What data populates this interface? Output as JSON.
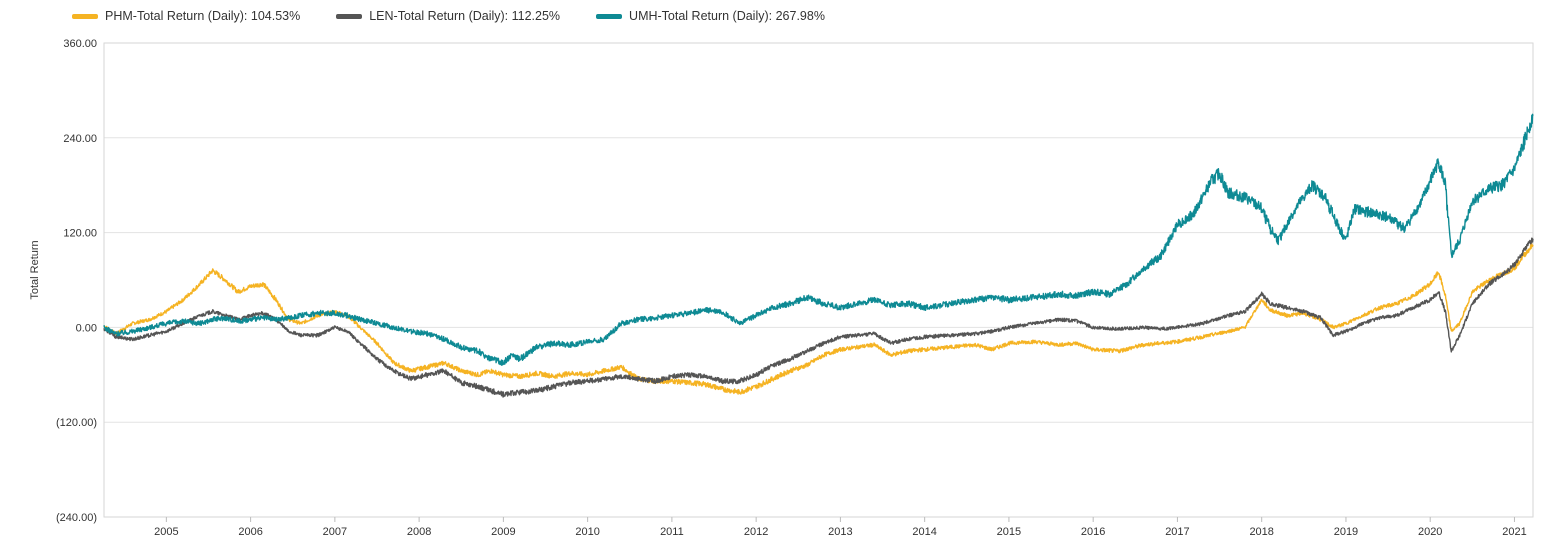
{
  "legend": [
    {
      "label": "PHM-Total Return (Daily): 104.53%",
      "color": "#F5B323"
    },
    {
      "label": "LEN-Total Return (Daily): 112.25%",
      "color": "#555555"
    },
    {
      "label": "UMH-Total Return (Daily): 267.98%",
      "color": "#0E8A94"
    }
  ],
  "chart_data": {
    "type": "line",
    "title": "",
    "xlabel": "",
    "ylabel": "Total Return",
    "ylim": [
      -240,
      360
    ],
    "yticks": [
      360,
      240,
      120,
      0,
      -120,
      -240
    ],
    "ytick_labels": [
      "360.00",
      "240.00",
      "120.00",
      "0.00",
      "(120.00)",
      "(240.00)"
    ],
    "xlim": [
      2004.26,
      2021.22
    ],
    "xticks": [
      2005,
      2006,
      2007,
      2008,
      2009,
      2010,
      2011,
      2012,
      2013,
      2014,
      2015,
      2016,
      2017,
      2018,
      2019,
      2020,
      2021
    ],
    "xtick_labels": [
      "2005",
      "2006",
      "2007",
      "2008",
      "2009",
      "2010",
      "2011",
      "2012",
      "2013",
      "2014",
      "2015",
      "2016",
      "2017",
      "2018",
      "2019",
      "2020",
      "2021"
    ],
    "grid": true,
    "legend_position": "top-left",
    "series": [
      {
        "name": "PHM-Total Return (Daily): 104.53%",
        "color": "#F5B323",
        "points": [
          [
            2004.26,
            2
          ],
          [
            2004.4,
            -8
          ],
          [
            2004.6,
            5
          ],
          [
            2004.8,
            10
          ],
          [
            2005.0,
            20
          ],
          [
            2005.2,
            35
          ],
          [
            2005.4,
            55
          ],
          [
            2005.55,
            72
          ],
          [
            2005.7,
            60
          ],
          [
            2005.85,
            45
          ],
          [
            2006.0,
            52
          ],
          [
            2006.15,
            55
          ],
          [
            2006.3,
            35
          ],
          [
            2006.45,
            10
          ],
          [
            2006.6,
            5
          ],
          [
            2006.8,
            15
          ],
          [
            2007.0,
            20
          ],
          [
            2007.15,
            15
          ],
          [
            2007.3,
            0
          ],
          [
            2007.5,
            -20
          ],
          [
            2007.7,
            -45
          ],
          [
            2007.9,
            -55
          ],
          [
            2008.1,
            -50
          ],
          [
            2008.3,
            -45
          ],
          [
            2008.5,
            -55
          ],
          [
            2008.7,
            -60
          ],
          [
            2008.85,
            -55
          ],
          [
            2009.0,
            -60
          ],
          [
            2009.2,
            -62
          ],
          [
            2009.4,
            -58
          ],
          [
            2009.6,
            -62
          ],
          [
            2009.8,
            -58
          ],
          [
            2010.0,
            -60
          ],
          [
            2010.2,
            -55
          ],
          [
            2010.4,
            -50
          ],
          [
            2010.6,
            -65
          ],
          [
            2010.8,
            -68
          ],
          [
            2011.0,
            -68
          ],
          [
            2011.2,
            -70
          ],
          [
            2011.4,
            -72
          ],
          [
            2011.6,
            -78
          ],
          [
            2011.8,
            -82
          ],
          [
            2012.0,
            -75
          ],
          [
            2012.2,
            -65
          ],
          [
            2012.4,
            -55
          ],
          [
            2012.6,
            -48
          ],
          [
            2012.8,
            -35
          ],
          [
            2013.0,
            -28
          ],
          [
            2013.2,
            -25
          ],
          [
            2013.4,
            -22
          ],
          [
            2013.6,
            -35
          ],
          [
            2013.8,
            -30
          ],
          [
            2014.0,
            -28
          ],
          [
            2014.3,
            -25
          ],
          [
            2014.6,
            -22
          ],
          [
            2014.8,
            -28
          ],
          [
            2015.0,
            -20
          ],
          [
            2015.3,
            -18
          ],
          [
            2015.6,
            -22
          ],
          [
            2015.8,
            -20
          ],
          [
            2016.0,
            -28
          ],
          [
            2016.3,
            -30
          ],
          [
            2016.6,
            -22
          ],
          [
            2016.8,
            -20
          ],
          [
            2017.0,
            -18
          ],
          [
            2017.3,
            -12
          ],
          [
            2017.6,
            -5
          ],
          [
            2017.8,
            0
          ],
          [
            2018.0,
            35
          ],
          [
            2018.1,
            22
          ],
          [
            2018.3,
            15
          ],
          [
            2018.5,
            18
          ],
          [
            2018.7,
            10
          ],
          [
            2018.85,
            0
          ],
          [
            2019.0,
            5
          ],
          [
            2019.2,
            15
          ],
          [
            2019.4,
            25
          ],
          [
            2019.6,
            30
          ],
          [
            2019.8,
            40
          ],
          [
            2020.0,
            55
          ],
          [
            2020.1,
            70
          ],
          [
            2020.18,
            40
          ],
          [
            2020.25,
            -5
          ],
          [
            2020.35,
            5
          ],
          [
            2020.5,
            45
          ],
          [
            2020.7,
            60
          ],
          [
            2020.9,
            70
          ],
          [
            2021.0,
            75
          ],
          [
            2021.1,
            90
          ],
          [
            2021.22,
            104.5
          ]
        ]
      },
      {
        "name": "LEN-Total Return (Daily): 112.25%",
        "color": "#555555",
        "points": [
          [
            2004.26,
            -2
          ],
          [
            2004.4,
            -12
          ],
          [
            2004.6,
            -15
          ],
          [
            2004.8,
            -10
          ],
          [
            2005.0,
            -5
          ],
          [
            2005.2,
            5
          ],
          [
            2005.4,
            15
          ],
          [
            2005.55,
            20
          ],
          [
            2005.7,
            15
          ],
          [
            2005.85,
            10
          ],
          [
            2006.0,
            15
          ],
          [
            2006.15,
            18
          ],
          [
            2006.3,
            10
          ],
          [
            2006.45,
            -5
          ],
          [
            2006.6,
            -10
          ],
          [
            2006.8,
            -10
          ],
          [
            2007.0,
            0
          ],
          [
            2007.15,
            -5
          ],
          [
            2007.3,
            -20
          ],
          [
            2007.5,
            -40
          ],
          [
            2007.7,
            -55
          ],
          [
            2007.9,
            -65
          ],
          [
            2008.1,
            -60
          ],
          [
            2008.3,
            -55
          ],
          [
            2008.5,
            -70
          ],
          [
            2008.7,
            -75
          ],
          [
            2008.85,
            -80
          ],
          [
            2009.0,
            -85
          ],
          [
            2009.2,
            -82
          ],
          [
            2009.4,
            -80
          ],
          [
            2009.6,
            -75
          ],
          [
            2009.8,
            -70
          ],
          [
            2010.0,
            -68
          ],
          [
            2010.2,
            -65
          ],
          [
            2010.4,
            -62
          ],
          [
            2010.6,
            -65
          ],
          [
            2010.8,
            -68
          ],
          [
            2011.0,
            -62
          ],
          [
            2011.2,
            -60
          ],
          [
            2011.4,
            -62
          ],
          [
            2011.6,
            -68
          ],
          [
            2011.8,
            -68
          ],
          [
            2012.0,
            -60
          ],
          [
            2012.2,
            -48
          ],
          [
            2012.4,
            -40
          ],
          [
            2012.6,
            -30
          ],
          [
            2012.8,
            -20
          ],
          [
            2013.0,
            -12
          ],
          [
            2013.2,
            -10
          ],
          [
            2013.4,
            -8
          ],
          [
            2013.6,
            -20
          ],
          [
            2013.8,
            -15
          ],
          [
            2014.0,
            -12
          ],
          [
            2014.3,
            -10
          ],
          [
            2014.6,
            -8
          ],
          [
            2014.8,
            -5
          ],
          [
            2015.0,
            0
          ],
          [
            2015.3,
            5
          ],
          [
            2015.6,
            10
          ],
          [
            2015.8,
            8
          ],
          [
            2016.0,
            0
          ],
          [
            2016.3,
            -2
          ],
          [
            2016.6,
            0
          ],
          [
            2016.8,
            -2
          ],
          [
            2017.0,
            0
          ],
          [
            2017.3,
            5
          ],
          [
            2017.6,
            15
          ],
          [
            2017.8,
            20
          ],
          [
            2018.0,
            42
          ],
          [
            2018.1,
            30
          ],
          [
            2018.3,
            25
          ],
          [
            2018.5,
            20
          ],
          [
            2018.7,
            12
          ],
          [
            2018.85,
            -10
          ],
          [
            2019.0,
            -5
          ],
          [
            2019.2,
            5
          ],
          [
            2019.4,
            12
          ],
          [
            2019.6,
            15
          ],
          [
            2019.8,
            25
          ],
          [
            2020.0,
            35
          ],
          [
            2020.1,
            45
          ],
          [
            2020.18,
            20
          ],
          [
            2020.25,
            -30
          ],
          [
            2020.35,
            -10
          ],
          [
            2020.5,
            30
          ],
          [
            2020.7,
            55
          ],
          [
            2020.9,
            70
          ],
          [
            2021.0,
            80
          ],
          [
            2021.1,
            95
          ],
          [
            2021.22,
            112.3
          ]
        ]
      },
      {
        "name": "UMH-Total Return (Daily): 267.98%",
        "color": "#0E8A94",
        "points": [
          [
            2004.26,
            0
          ],
          [
            2004.4,
            -8
          ],
          [
            2004.6,
            -5
          ],
          [
            2004.8,
            0
          ],
          [
            2005.0,
            5
          ],
          [
            2005.2,
            8
          ],
          [
            2005.4,
            5
          ],
          [
            2005.55,
            10
          ],
          [
            2005.7,
            12
          ],
          [
            2005.85,
            8
          ],
          [
            2006.0,
            10
          ],
          [
            2006.15,
            12
          ],
          [
            2006.3,
            10
          ],
          [
            2006.45,
            12
          ],
          [
            2006.6,
            15
          ],
          [
            2006.8,
            18
          ],
          [
            2007.0,
            18
          ],
          [
            2007.15,
            15
          ],
          [
            2007.3,
            10
          ],
          [
            2007.5,
            5
          ],
          [
            2007.7,
            0
          ],
          [
            2007.9,
            -5
          ],
          [
            2008.1,
            -8
          ],
          [
            2008.3,
            -15
          ],
          [
            2008.5,
            -25
          ],
          [
            2008.7,
            -30
          ],
          [
            2008.85,
            -40
          ],
          [
            2009.0,
            -45
          ],
          [
            2009.1,
            -35
          ],
          [
            2009.2,
            -40
          ],
          [
            2009.4,
            -25
          ],
          [
            2009.6,
            -20
          ],
          [
            2009.8,
            -22
          ],
          [
            2010.0,
            -18
          ],
          [
            2010.2,
            -15
          ],
          [
            2010.4,
            5
          ],
          [
            2010.6,
            10
          ],
          [
            2010.8,
            12
          ],
          [
            2011.0,
            15
          ],
          [
            2011.2,
            18
          ],
          [
            2011.4,
            22
          ],
          [
            2011.6,
            20
          ],
          [
            2011.8,
            5
          ],
          [
            2012.0,
            15
          ],
          [
            2012.2,
            25
          ],
          [
            2012.4,
            30
          ],
          [
            2012.6,
            38
          ],
          [
            2012.8,
            30
          ],
          [
            2013.0,
            25
          ],
          [
            2013.2,
            30
          ],
          [
            2013.4,
            35
          ],
          [
            2013.6,
            28
          ],
          [
            2013.8,
            30
          ],
          [
            2014.0,
            25
          ],
          [
            2014.3,
            30
          ],
          [
            2014.6,
            35
          ],
          [
            2014.8,
            38
          ],
          [
            2015.0,
            35
          ],
          [
            2015.3,
            38
          ],
          [
            2015.6,
            42
          ],
          [
            2015.8,
            40
          ],
          [
            2016.0,
            45
          ],
          [
            2016.2,
            42
          ],
          [
            2016.4,
            55
          ],
          [
            2016.6,
            75
          ],
          [
            2016.8,
            90
          ],
          [
            2017.0,
            130
          ],
          [
            2017.2,
            145
          ],
          [
            2017.4,
            185
          ],
          [
            2017.5,
            195
          ],
          [
            2017.6,
            170
          ],
          [
            2017.8,
            165
          ],
          [
            2018.0,
            150
          ],
          [
            2018.1,
            125
          ],
          [
            2018.2,
            110
          ],
          [
            2018.4,
            150
          ],
          [
            2018.6,
            180
          ],
          [
            2018.75,
            165
          ],
          [
            2018.9,
            130
          ],
          [
            2019.0,
            110
          ],
          [
            2019.1,
            150
          ],
          [
            2019.3,
            145
          ],
          [
            2019.5,
            140
          ],
          [
            2019.7,
            125
          ],
          [
            2019.9,
            160
          ],
          [
            2020.0,
            185
          ],
          [
            2020.1,
            210
          ],
          [
            2020.18,
            180
          ],
          [
            2020.25,
            90
          ],
          [
            2020.35,
            110
          ],
          [
            2020.5,
            160
          ],
          [
            2020.7,
            175
          ],
          [
            2020.85,
            180
          ],
          [
            2021.0,
            200
          ],
          [
            2021.1,
            230
          ],
          [
            2021.22,
            268
          ]
        ]
      }
    ]
  }
}
